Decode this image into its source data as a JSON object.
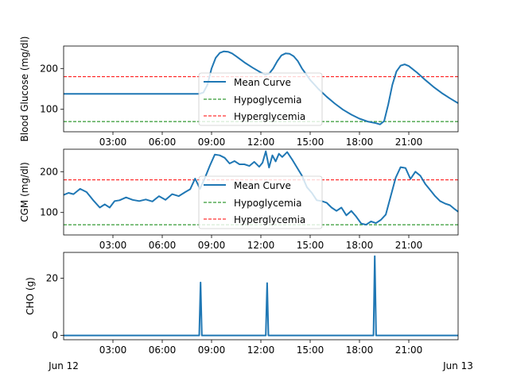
{
  "colors": {
    "curve": "#1f77b4",
    "hypo": "#008000",
    "hyper": "#ff0000",
    "axis": "#000000",
    "background": "#ffffff"
  },
  "x_start_label": "Jun 12",
  "x_end_label": "Jun 13",
  "chart_data": [
    {
      "type": "line",
      "ylabel": "Blood Glucose (mg/dl)",
      "xlim": [
        0,
        24
      ],
      "ylim": [
        45,
        255
      ],
      "yticks": [
        100,
        200
      ],
      "xticks": [
        "03:00",
        "06:00",
        "09:00",
        "12:00",
        "15:00",
        "18:00",
        "21:00"
      ],
      "hypo_threshold": 70,
      "hyper_threshold": 180,
      "legend": {
        "placement": "center",
        "entries": [
          "Mean Curve",
          "Hypoglycemia",
          "Hyperglycemia"
        ]
      },
      "series": [
        {
          "name": "Mean Curve",
          "x": [
            0,
            8.25,
            8.5,
            8.75,
            9.0,
            9.25,
            9.5,
            9.75,
            10.0,
            10.25,
            10.5,
            11.0,
            11.5,
            12.0,
            12.25,
            12.5,
            12.75,
            13.0,
            13.25,
            13.5,
            13.75,
            14.0,
            14.25,
            14.5,
            15.0,
            15.5,
            16.0,
            16.5,
            17.0,
            17.5,
            18.0,
            18.5,
            19.0,
            19.25,
            19.5,
            19.75,
            20.0,
            20.25,
            20.5,
            20.75,
            21.0,
            21.5,
            22.0,
            22.5,
            23.0,
            23.5,
            24.0
          ],
          "y": [
            138,
            138,
            141,
            160,
            200,
            226,
            238,
            242,
            241,
            237,
            230,
            215,
            202,
            190,
            185,
            187,
            200,
            218,
            232,
            237,
            236,
            230,
            218,
            200,
            172,
            150,
            131,
            114,
            99,
            87,
            77,
            70,
            66,
            63,
            71,
            112,
            160,
            193,
            207,
            210,
            206,
            190,
            172,
            155,
            140,
            127,
            115
          ]
        }
      ]
    },
    {
      "type": "line",
      "ylabel": "CGM (mg/dl)",
      "xlim": [
        0,
        24
      ],
      "ylim": [
        45,
        255
      ],
      "yticks": [
        100,
        200
      ],
      "xticks": [
        "03:00",
        "06:00",
        "09:00",
        "12:00",
        "15:00",
        "18:00",
        "21:00"
      ],
      "hypo_threshold": 70,
      "hyper_threshold": 180,
      "legend": {
        "placement": "center",
        "entries": [
          "Mean Curve",
          "Hypoglycemia",
          "Hyperglycemia"
        ]
      },
      "series": [
        {
          "name": "Mean Curve",
          "x": [
            0,
            0.3,
            0.6,
            1.0,
            1.4,
            1.8,
            2.2,
            2.5,
            2.8,
            3.1,
            3.4,
            3.8,
            4.2,
            4.6,
            5.0,
            5.4,
            5.8,
            6.2,
            6.6,
            7.0,
            7.4,
            7.7,
            8.0,
            8.3,
            8.6,
            8.9,
            9.2,
            9.5,
            9.8,
            10.1,
            10.4,
            10.7,
            11.0,
            11.3,
            11.6,
            11.9,
            12.1,
            12.3,
            12.5,
            12.7,
            12.9,
            13.1,
            13.3,
            13.6,
            13.9,
            14.2,
            14.5,
            14.8,
            15.1,
            15.4,
            15.7,
            16.0,
            16.3,
            16.6,
            16.9,
            17.2,
            17.5,
            17.8,
            18.1,
            18.4,
            18.7,
            19.0,
            19.3,
            19.6,
            19.9,
            20.2,
            20.5,
            20.8,
            21.1,
            21.4,
            21.7,
            22.0,
            22.3,
            22.6,
            22.9,
            23.2,
            23.5,
            23.8,
            24.0
          ],
          "y": [
            143,
            148,
            145,
            158,
            150,
            130,
            112,
            120,
            112,
            128,
            130,
            137,
            131,
            128,
            132,
            127,
            140,
            131,
            145,
            140,
            150,
            157,
            183,
            158,
            185,
            215,
            242,
            240,
            234,
            220,
            226,
            218,
            218,
            214,
            224,
            212,
            222,
            250,
            210,
            240,
            225,
            244,
            236,
            248,
            230,
            210,
            190,
            162,
            148,
            130,
            128,
            124,
            112,
            104,
            112,
            93,
            104,
            90,
            73,
            70,
            78,
            74,
            82,
            95,
            140,
            185,
            211,
            209,
            182,
            200,
            190,
            170,
            155,
            140,
            128,
            122,
            118,
            108,
            102
          ]
        }
      ]
    },
    {
      "type": "line",
      "ylabel": "CHO (g)",
      "xlim": [
        0,
        24
      ],
      "ylim": [
        -1.5,
        29
      ],
      "yticks": [
        0,
        20
      ],
      "xticks": [
        "03:00",
        "06:00",
        "09:00",
        "12:00",
        "15:00",
        "18:00",
        "21:00"
      ],
      "series": [
        {
          "name": "CHO",
          "x": [
            0,
            8.25,
            8.33,
            8.41,
            12.3,
            12.38,
            12.46,
            18.85,
            18.93,
            19.01,
            24
          ],
          "y": [
            0,
            0,
            18.5,
            0,
            0,
            18.3,
            0,
            0,
            27.7,
            0,
            0
          ]
        }
      ]
    }
  ]
}
